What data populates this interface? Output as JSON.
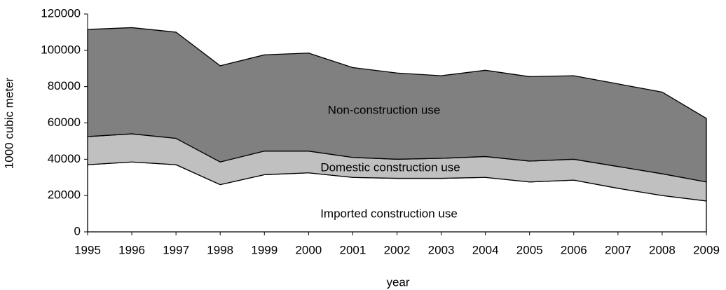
{
  "chart_data": {
    "type": "stacked-area",
    "x_label": "year",
    "y_label": "1000 cubic meter",
    "x": [
      1995,
      1996,
      1997,
      1998,
      1999,
      2000,
      2001,
      2002,
      2003,
      2004,
      2005,
      2006,
      2007,
      2008,
      2009
    ],
    "xlim": [
      1995,
      2009
    ],
    "xticks": [
      1995,
      1996,
      1997,
      1998,
      1999,
      2000,
      2001,
      2002,
      2003,
      2004,
      2005,
      2006,
      2007,
      2008,
      2009
    ],
    "ylim": [
      0,
      120000
    ],
    "yticks": [
      0,
      20000,
      40000,
      60000,
      80000,
      100000,
      120000
    ],
    "series": [
      {
        "name": "Imported construction use",
        "color": "#ffffff",
        "values": [
          37000,
          38500,
          37000,
          26000,
          31500,
          32500,
          30000,
          29500,
          29500,
          30000,
          27500,
          28500,
          24000,
          20000,
          17000
        ]
      },
      {
        "name": "Domestic construction use",
        "color": "#c0c0c0",
        "values": [
          15500,
          15500,
          14500,
          12500,
          13000,
          12000,
          11000,
          10500,
          11000,
          11500,
          11500,
          11500,
          12000,
          12000,
          10500
        ]
      },
      {
        "name": "Non-construction use",
        "color": "#808080",
        "values": [
          59000,
          58500,
          58500,
          53000,
          53000,
          54000,
          49500,
          47500,
          45500,
          47500,
          46500,
          46000,
          45500,
          45000,
          35000
        ]
      }
    ]
  }
}
